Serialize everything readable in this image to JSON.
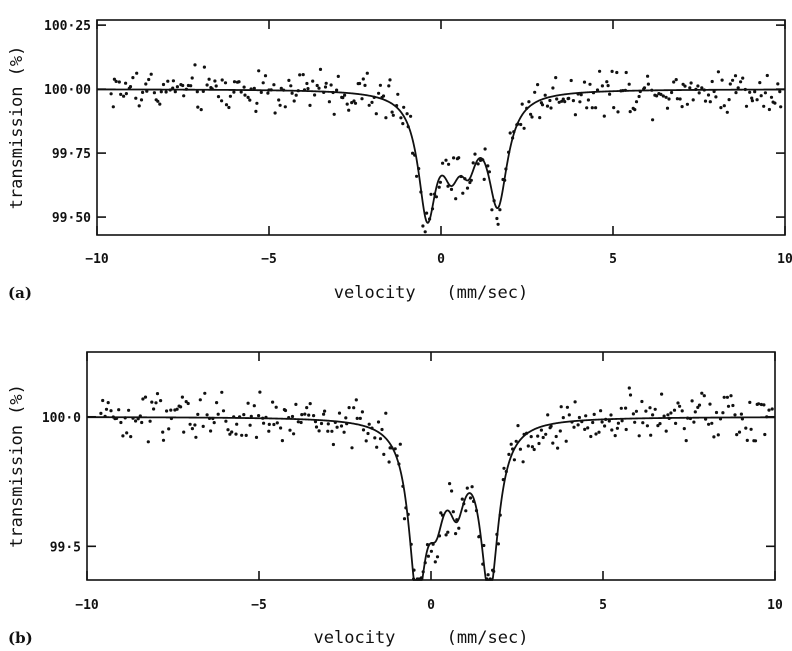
{
  "chart_data": [
    {
      "type": "scatter",
      "panel_label": "(a)",
      "xlabel": "velocity   (mm/sec)",
      "ylabel": "transmission (%)",
      "xlim": [
        -10,
        10
      ],
      "ylim": [
        99.43,
        100.27
      ],
      "x_ticks": [
        -10,
        -5,
        0,
        5,
        10
      ],
      "x_tick_labels": [
        "−10",
        "−5",
        "0",
        "5",
        "10"
      ],
      "y_ticks": [
        100.25,
        100.0,
        99.75,
        99.5
      ],
      "y_tick_labels": [
        "100·25",
        "100·00",
        "99·75",
        "99·50"
      ],
      "baseline": 100.0,
      "noise_amplitude": 0.075,
      "fit_peaks": [
        {
          "center": -0.4,
          "depth": 0.46,
          "width": 0.32
        },
        {
          "center": 0.3,
          "depth": 0.22,
          "width": 0.32
        },
        {
          "center": 0.8,
          "depth": 0.2,
          "width": 0.3
        },
        {
          "center": 1.65,
          "depth": 0.42,
          "width": 0.35
        }
      ],
      "points_x_range": [
        -9.6,
        9.9
      ],
      "points_count": 330,
      "grid": false,
      "legend": "none"
    },
    {
      "type": "scatter",
      "panel_label": "(b)",
      "xlabel": "velocity     (mm/sec)",
      "ylabel": "transmission (%)",
      "xlim": [
        -10,
        10
      ],
      "ylim": [
        99.37,
        100.25
      ],
      "x_ticks": [
        -10,
        -5,
        0,
        5,
        10
      ],
      "x_tick_labels": [
        "−10",
        "−5",
        "0",
        "5",
        "10"
      ],
      "y_ticks": [
        100.0,
        99.5
      ],
      "y_tick_labels": [
        "100·0",
        "99·5"
      ],
      "baseline": 100.0,
      "noise_amplitude": 0.085,
      "fit_peaks": [
        {
          "center": -0.4,
          "depth": 0.62,
          "width": 0.3
        },
        {
          "center": 0.15,
          "depth": 0.26,
          "width": 0.3
        },
        {
          "center": 0.75,
          "depth": 0.25,
          "width": 0.3
        },
        {
          "center": 1.7,
          "depth": 0.64,
          "width": 0.32
        }
      ],
      "points_x_range": [
        -9.6,
        9.9
      ],
      "points_count": 330,
      "grid": false,
      "legend": "none"
    }
  ]
}
